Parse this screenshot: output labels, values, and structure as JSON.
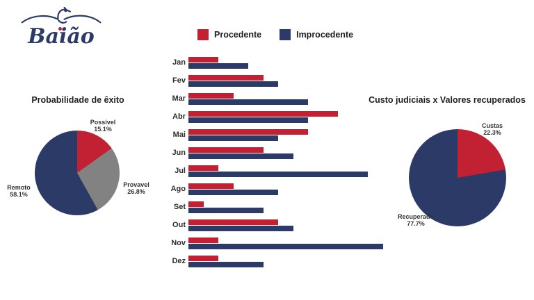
{
  "brand": {
    "name": "Baião",
    "colors": {
      "red": "#c22033",
      "navy": "#2b3a67",
      "gray": "#828282"
    }
  },
  "legend": {
    "items": [
      {
        "label": "Procedente",
        "color": "#c22033"
      },
      {
        "label": "Improcedente",
        "color": "#2b3a67"
      }
    ]
  },
  "chart_data": [
    {
      "type": "bar",
      "orientation": "horizontal",
      "categories": [
        "Jan",
        "Fev",
        "Mar",
        "Abr",
        "Mai",
        "Jun",
        "Jul",
        "Ago",
        "Set",
        "Out",
        "Nov",
        "Dez"
      ],
      "series": [
        {
          "name": "Procedente",
          "color": "#c22033",
          "values": [
            2,
            5,
            3,
            10,
            8,
            5,
            2,
            3,
            1,
            6,
            2,
            2
          ]
        },
        {
          "name": "Improcedente",
          "color": "#2b3a67",
          "values": [
            4,
            6,
            8,
            8,
            6,
            7,
            12,
            6,
            5,
            7,
            13,
            5
          ]
        }
      ],
      "xlim": [
        0,
        13
      ],
      "grid": false,
      "value_axis_visible": false,
      "legend_position": "top"
    },
    {
      "type": "pie",
      "title": "Probabilidade de êxito",
      "start_angle_deg": 0,
      "direction": "clockwise",
      "slices": [
        {
          "label": "Possível",
          "pct": "15.1%",
          "value": 15.1,
          "color": "#c22033"
        },
        {
          "label": "Provavel",
          "pct": "26.8%",
          "value": 26.8,
          "color": "#828282"
        },
        {
          "label": "Remoto",
          "pct": "58.1%",
          "value": 58.1,
          "color": "#2b3a67"
        }
      ]
    },
    {
      "type": "pie",
      "title": "Custo judiciais x Valores recuperados",
      "start_angle_deg": 0,
      "direction": "clockwise",
      "slices": [
        {
          "label": "Custas",
          "pct": "22.3%",
          "value": 22.3,
          "color": "#c22033"
        },
        {
          "label": "Recuperado",
          "pct": "77.7%",
          "value": 77.7,
          "color": "#2b3a67"
        }
      ]
    }
  ]
}
